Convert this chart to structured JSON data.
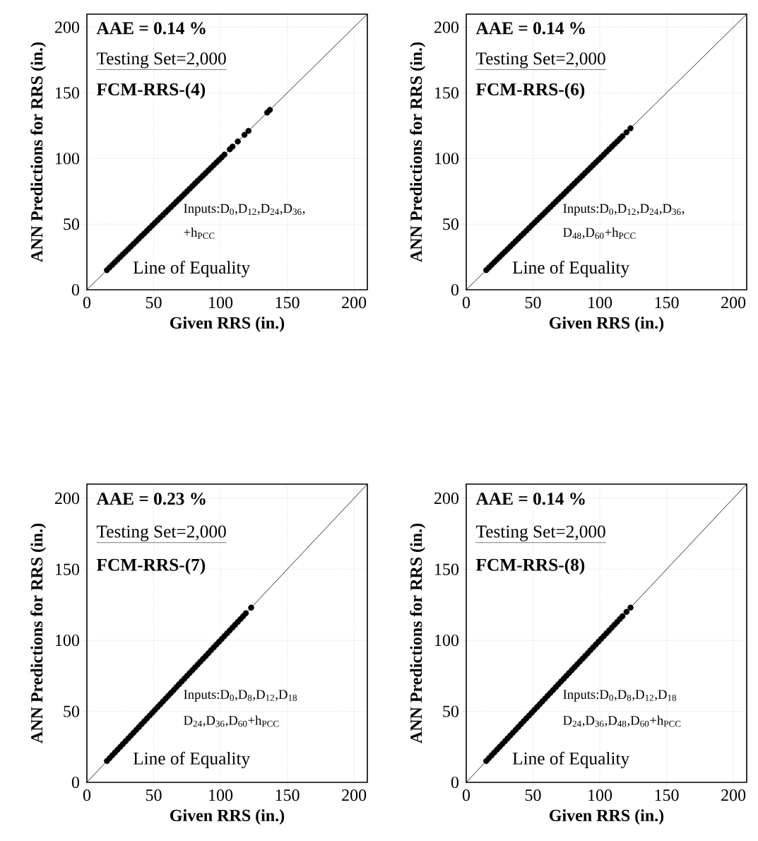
{
  "chart_data": [
    {
      "type": "scatter",
      "xlabel": "Given  RRS (in.)",
      "ylabel": "ANN Predictions for RRS (in.)",
      "xlim": [
        0,
        210
      ],
      "ylim": [
        0,
        210
      ],
      "xticks": [
        0,
        50,
        100,
        150,
        200
      ],
      "yticks": [
        0,
        50,
        100,
        150,
        200
      ],
      "grid": true,
      "marker": "circle",
      "annotations": [
        "AAE = 0.14 %",
        "Testing Set=2,000",
        "FCM-RRS-(4)",
        "Inputs:D$_{0}$,D$_{12}$,D$_{24}$,D$_{36}$,",
        "+h$_{PCC}$",
        "Line of Equality"
      ],
      "series": [
        {
          "color": "#000000",
          "x": [
            15,
            17,
            19,
            21,
            23,
            25,
            27,
            29,
            31,
            33,
            35,
            37,
            39,
            41,
            43,
            45,
            47,
            49,
            51,
            53,
            55,
            57,
            59,
            61,
            63,
            65,
            67,
            69,
            71,
            73,
            75,
            77,
            79,
            81,
            83,
            85,
            87,
            89,
            91,
            93,
            95,
            97,
            99,
            101,
            103,
            107,
            109,
            113,
            118,
            121,
            135,
            137
          ],
          "values": [
            15,
            17,
            19,
            21,
            23,
            25,
            27,
            29,
            31,
            33,
            35,
            37,
            39,
            41,
            43,
            45,
            47,
            49,
            51,
            53,
            55,
            57,
            59,
            61,
            63,
            65,
            67,
            69,
            71,
            73,
            75,
            77,
            79,
            81,
            83,
            85,
            87,
            89,
            91,
            93,
            95,
            97,
            99,
            101,
            103,
            107,
            109,
            113,
            118,
            121,
            135,
            137
          ]
        },
        {
          "type": "line",
          "color": "#000000",
          "line_style": "solid",
          "marker": "none",
          "x": [
            0,
            210
          ],
          "values": [
            0,
            210
          ]
        }
      ]
    },
    {
      "type": "scatter",
      "xlabel": "Given  RRS (in.)",
      "ylabel": "ANN Predictions for RRS (in.)",
      "xlim": [
        0,
        210
      ],
      "ylim": [
        0,
        210
      ],
      "xticks": [
        0,
        50,
        100,
        150,
        200
      ],
      "yticks": [
        0,
        50,
        100,
        150,
        200
      ],
      "grid": true,
      "marker": "circle",
      "annotations": [
        "AAE = 0.14 %",
        "Testing Set=2,000",
        "FCM-RRS-(6)",
        "Inputs:D$_{0}$,D$_{12}$,D$_{24}$,D$_{36}$,",
        "D$_{48}$,D$_{60}$+h$_{PCC}$",
        "Line of Equality"
      ],
      "series": [
        {
          "color": "#000000",
          "x": [
            15,
            17,
            19,
            21,
            23,
            25,
            27,
            29,
            31,
            33,
            35,
            37,
            39,
            41,
            43,
            45,
            47,
            49,
            51,
            53,
            55,
            57,
            59,
            61,
            63,
            65,
            67,
            69,
            71,
            73,
            75,
            77,
            79,
            81,
            83,
            85,
            87,
            89,
            91,
            93,
            95,
            97,
            99,
            101,
            103,
            105,
            107,
            109,
            111,
            113,
            115,
            117,
            120,
            123
          ],
          "values": [
            15,
            17,
            19,
            21,
            23,
            25,
            27,
            29,
            31,
            33,
            35,
            37,
            39,
            41,
            43,
            45,
            47,
            49,
            51,
            53,
            55,
            57,
            59,
            61,
            63,
            65,
            67,
            69,
            71,
            73,
            75,
            77,
            79,
            81,
            83,
            85,
            87,
            89,
            91,
            93,
            95,
            97,
            99,
            101,
            103,
            105,
            107,
            109,
            111,
            113,
            115,
            117,
            120,
            123
          ]
        },
        {
          "type": "line",
          "color": "#000000",
          "line_style": "solid",
          "marker": "none",
          "x": [
            0,
            210
          ],
          "values": [
            0,
            210
          ]
        }
      ]
    },
    {
      "type": "scatter",
      "xlabel": "Given  RRS (in.)",
      "ylabel": "ANN Predictions for RRS (in.)",
      "xlim": [
        0,
        210
      ],
      "ylim": [
        0,
        210
      ],
      "xticks": [
        0,
        50,
        100,
        150,
        200
      ],
      "yticks": [
        0,
        50,
        100,
        150,
        200
      ],
      "grid": true,
      "marker": "circle",
      "annotations": [
        "AAE = 0.23 %",
        "Testing Set=2,000",
        "FCM-RRS-(7)",
        "Inputs:D$_{0}$,D$_{8}$,D$_{12}$,D$_{18}$",
        "D$_{24}$,D$_{36}$,D$_{60}$+h$_{PCC}$",
        "Line of Equality"
      ],
      "series": [
        {
          "color": "#000000",
          "x": [
            15,
            17,
            19,
            21,
            23,
            25,
            27,
            29,
            31,
            33,
            35,
            37,
            39,
            41,
            43,
            45,
            47,
            49,
            51,
            53,
            55,
            57,
            59,
            61,
            63,
            65,
            67,
            69,
            71,
            73,
            75,
            77,
            79,
            81,
            83,
            85,
            87,
            89,
            91,
            93,
            95,
            97,
            99,
            101,
            103,
            105,
            107,
            109,
            111,
            113,
            115,
            117,
            119,
            123
          ],
          "values": [
            15,
            17,
            19,
            21,
            23,
            25,
            27,
            29,
            31,
            33,
            35,
            37,
            39,
            41,
            43,
            45,
            47,
            49,
            51,
            53,
            55,
            57,
            59,
            61,
            63,
            65,
            67,
            69,
            71,
            73,
            75,
            77,
            79,
            81,
            83,
            85,
            87,
            89,
            91,
            93,
            95,
            97,
            99,
            101,
            103,
            105,
            107,
            109,
            111,
            113,
            115,
            117,
            119,
            123
          ]
        },
        {
          "type": "line",
          "color": "#000000",
          "line_style": "solid",
          "marker": "none",
          "x": [
            0,
            210
          ],
          "values": [
            0,
            210
          ]
        }
      ]
    },
    {
      "type": "scatter",
      "xlabel": "Given  RRS (in.)",
      "ylabel": "ANN Predictions for RRS (in.)",
      "xlim": [
        0,
        210
      ],
      "ylim": [
        0,
        210
      ],
      "xticks": [
        0,
        50,
        100,
        150,
        200
      ],
      "yticks": [
        0,
        50,
        100,
        150,
        200
      ],
      "grid": true,
      "marker": "circle",
      "annotations": [
        "AAE = 0.14 %",
        "Testing Set=2,000",
        "FCM-RRS-(8)",
        "Inputs:D$_{0}$,D$_{8}$,D$_{12}$,D$_{18}$",
        "D$_{24}$,D$_{36}$,D$_{48}$,D$_{60}$+h$_{PCC}$",
        "Line of Equality"
      ],
      "series": [
        {
          "color": "#000000",
          "x": [
            15,
            17,
            19,
            21,
            23,
            25,
            27,
            29,
            31,
            33,
            35,
            37,
            39,
            41,
            43,
            45,
            47,
            49,
            51,
            53,
            55,
            57,
            59,
            61,
            63,
            65,
            67,
            69,
            71,
            73,
            75,
            77,
            79,
            81,
            83,
            85,
            87,
            89,
            91,
            93,
            95,
            97,
            99,
            101,
            103,
            105,
            107,
            109,
            111,
            113,
            115,
            117,
            120,
            123
          ],
          "values": [
            15,
            17,
            19,
            21,
            23,
            25,
            27,
            29,
            31,
            33,
            35,
            37,
            39,
            41,
            43,
            45,
            47,
            49,
            51,
            53,
            55,
            57,
            59,
            61,
            63,
            65,
            67,
            69,
            71,
            73,
            75,
            77,
            79,
            81,
            83,
            85,
            87,
            89,
            91,
            93,
            95,
            97,
            99,
            101,
            103,
            105,
            107,
            109,
            111,
            113,
            115,
            117,
            120,
            123
          ]
        },
        {
          "type": "line",
          "color": "#000000",
          "line_style": "solid",
          "marker": "none",
          "x": [
            0,
            210
          ],
          "values": [
            0,
            210
          ]
        }
      ]
    }
  ]
}
